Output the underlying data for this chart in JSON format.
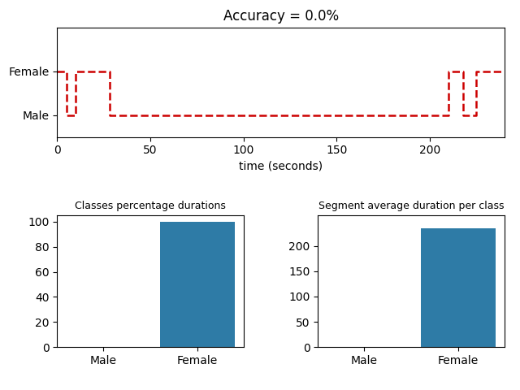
{
  "title": "Accuracy = 0.0%",
  "line_color": "#cc0000",
  "line_style": "--",
  "line_width": 1.8,
  "yticks": [
    0,
    1
  ],
  "ytick_labels": [
    "Male",
    "Female"
  ],
  "xlabel": "time (seconds)",
  "xlim": [
    0,
    240
  ],
  "ylim": [
    -0.5,
    2.0
  ],
  "step_x": [
    0,
    5,
    5,
    10,
    10,
    28,
    28,
    210,
    210,
    218,
    218,
    225,
    225,
    240
  ],
  "step_y": [
    1,
    1,
    0,
    0,
    1,
    1,
    0,
    0,
    1,
    1,
    0,
    0,
    1,
    1
  ],
  "bar_color": "#2e7ba6",
  "bar_categories": [
    "Male",
    "Female"
  ],
  "bar_pct_values": [
    0,
    100
  ],
  "bar_avg_values": [
    0,
    234
  ],
  "bar_pct_title": "Classes percentage durations",
  "bar_avg_title": "Segment average duration per class",
  "bar_pct_ylim": [
    0,
    105
  ],
  "bar_avg_ylim": [
    0,
    260
  ],
  "bar_pct_yticks": [
    0,
    20,
    40,
    60,
    80,
    100
  ],
  "bar_avg_yticks": [
    0,
    50,
    100,
    150,
    200
  ]
}
